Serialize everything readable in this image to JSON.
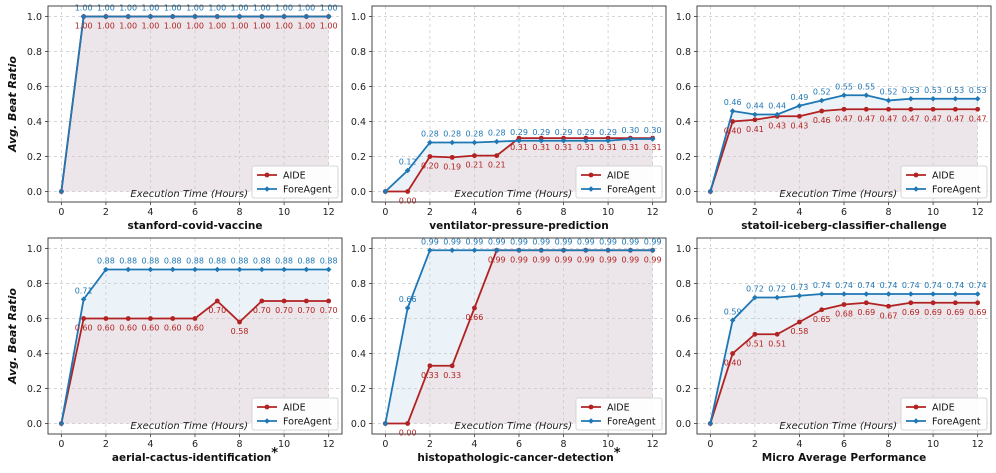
{
  "figure": {
    "ylabel": "Avg. Beat Ratio"
  },
  "colors": {
    "aide": "#b22222",
    "foreagent": "#1f77b4",
    "fill_aide": "#ece6ea",
    "fill_gap": "#e8f0f7"
  },
  "chart_data": [
    {
      "type": "line",
      "title": "stanford-covid-vaccine",
      "xlabel": "Execution Time (Hours)",
      "ylabel": "Avg. Beat Ratio",
      "x": [
        0,
        1,
        2,
        3,
        4,
        5,
        6,
        7,
        8,
        9,
        10,
        11,
        12
      ],
      "xlim": [
        -0.6,
        12.6
      ],
      "ylim": [
        -0.06,
        1.06
      ],
      "xticks": [
        "0",
        "2",
        "4",
        "6",
        "8",
        "10",
        "12"
      ],
      "yticks": [
        "0.0",
        "0.2",
        "0.4",
        "0.6",
        "0.8",
        "1.0"
      ],
      "legend": "lower-right",
      "series": [
        {
          "name": "AIDE",
          "values": [
            0,
            1,
            1,
            1,
            1,
            1,
            1,
            1,
            1,
            1,
            1,
            1,
            1
          ],
          "labels": [
            "",
            "1.00",
            "1.00",
            "1.00",
            "1.00",
            "1.00",
            "1.00",
            "1.00",
            "1.00",
            "1.00",
            "1.00",
            "1.00",
            "1.00"
          ]
        },
        {
          "name": "ForeAgent",
          "values": [
            0,
            1,
            1,
            1,
            1,
            1,
            1,
            1,
            1,
            1,
            1,
            1,
            1
          ],
          "labels": [
            "",
            "1.00",
            "1.00",
            "1.00",
            "1.00",
            "1.00",
            "1.00",
            "1.00",
            "1.00",
            "1.00",
            "1.00",
            "1.00",
            "1.00"
          ]
        }
      ]
    },
    {
      "type": "line",
      "title": "ventilator-pressure-prediction",
      "xlabel": "Execution Time (Hours)",
      "ylabel": "",
      "x": [
        0,
        1,
        2,
        3,
        4,
        5,
        6,
        7,
        8,
        9,
        10,
        11,
        12
      ],
      "xlim": [
        -0.6,
        12.6
      ],
      "ylim": [
        -0.06,
        1.06
      ],
      "xticks": [
        "0",
        "2",
        "4",
        "6",
        "8",
        "10",
        "12"
      ],
      "yticks": [
        "0.0",
        "0.2",
        "0.4",
        "0.6",
        "0.8",
        "1.0"
      ],
      "legend": "lower-right",
      "series": [
        {
          "name": "AIDE",
          "values": [
            0,
            0,
            0.2,
            0.195,
            0.205,
            0.205,
            0.305,
            0.305,
            0.305,
            0.305,
            0.305,
            0.305,
            0.305
          ],
          "labels": [
            "",
            "0.00",
            "0.20",
            "0.19",
            "0.21",
            "0.21",
            "0.31",
            "0.31",
            "0.31",
            "0.31",
            "0.31",
            "0.31",
            "0.31"
          ]
        },
        {
          "name": "ForeAgent",
          "values": [
            0,
            0.12,
            0.28,
            0.28,
            0.28,
            0.285,
            0.29,
            0.29,
            0.29,
            0.29,
            0.29,
            0.3,
            0.3
          ],
          "labels": [
            "",
            "0.12",
            "0.28",
            "0.28",
            "0.28",
            "0.28",
            "0.29",
            "0.29",
            "0.29",
            "0.29",
            "0.29",
            "0.30",
            "0.30"
          ]
        }
      ]
    },
    {
      "type": "line",
      "title": "statoil-iceberg-classifier-challenge",
      "xlabel": "Execution Time (Hours)",
      "ylabel": "",
      "x": [
        0,
        1,
        2,
        3,
        4,
        5,
        6,
        7,
        8,
        9,
        10,
        11,
        12
      ],
      "xlim": [
        -0.6,
        12.6
      ],
      "ylim": [
        -0.06,
        1.06
      ],
      "xticks": [
        "0",
        "2",
        "4",
        "6",
        "8",
        "10",
        "12"
      ],
      "yticks": [
        "0.0",
        "0.2",
        "0.4",
        "0.6",
        "0.8",
        "1.0"
      ],
      "legend": "lower-right",
      "series": [
        {
          "name": "AIDE",
          "values": [
            0,
            0.4,
            0.41,
            0.43,
            0.43,
            0.46,
            0.47,
            0.47,
            0.47,
            0.47,
            0.47,
            0.47,
            0.47
          ],
          "labels": [
            "",
            "0.40",
            "0.41",
            "0.43",
            "0.43",
            "0.46",
            "0.47",
            "0.47",
            "0.47",
            "0.47",
            "0.47",
            "0.47",
            "0.47"
          ]
        },
        {
          "name": "ForeAgent",
          "values": [
            0,
            0.46,
            0.44,
            0.44,
            0.49,
            0.52,
            0.55,
            0.55,
            0.52,
            0.53,
            0.53,
            0.53,
            0.53
          ],
          "labels": [
            "",
            "0.46",
            "0.44",
            "0.44",
            "0.49",
            "0.52",
            "0.55",
            "0.55",
            "0.52",
            "0.53",
            "0.53",
            "0.53",
            "0.53"
          ]
        }
      ]
    },
    {
      "type": "line",
      "title": "aerial-cactus-identification",
      "title_mark": "*",
      "xlabel": "Execution Time (Hours)",
      "ylabel": "Avg. Beat Ratio",
      "x": [
        0,
        1,
        2,
        3,
        4,
        5,
        6,
        7,
        8,
        9,
        10,
        11,
        12
      ],
      "xlim": [
        -0.6,
        12.6
      ],
      "ylim": [
        -0.06,
        1.06
      ],
      "xticks": [
        "0",
        "2",
        "4",
        "6",
        "8",
        "10",
        "12"
      ],
      "yticks": [
        "0.0",
        "0.2",
        "0.4",
        "0.6",
        "0.8",
        "1.0"
      ],
      "legend": "lower-right",
      "series": [
        {
          "name": "AIDE",
          "values": [
            0,
            0.6,
            0.6,
            0.6,
            0.6,
            0.6,
            0.6,
            0.7,
            0.58,
            0.7,
            0.7,
            0.7,
            0.7
          ],
          "labels": [
            "",
            "0.60",
            "0.60",
            "0.60",
            "0.60",
            "0.60",
            "0.60",
            "0.70",
            "0.58",
            "0.70",
            "0.70",
            "0.70",
            "0.70"
          ]
        },
        {
          "name": "ForeAgent",
          "values": [
            0,
            0.71,
            0.88,
            0.88,
            0.88,
            0.88,
            0.88,
            0.88,
            0.88,
            0.88,
            0.88,
            0.88,
            0.88
          ],
          "labels": [
            "",
            "0.71",
            "0.88",
            "0.88",
            "0.88",
            "0.88",
            "0.88",
            "0.88",
            "0.88",
            "0.88",
            "0.88",
            "0.88",
            "0.88"
          ]
        }
      ]
    },
    {
      "type": "line",
      "title": "histopathologic-cancer-detection",
      "title_mark": "*",
      "xlabel": "Execution Time (Hours)",
      "ylabel": "",
      "x": [
        0,
        1,
        2,
        3,
        4,
        5,
        6,
        7,
        8,
        9,
        10,
        11,
        12
      ],
      "xlim": [
        -0.6,
        12.6
      ],
      "ylim": [
        -0.06,
        1.06
      ],
      "xticks": [
        "0",
        "2",
        "4",
        "6",
        "8",
        "10",
        "12"
      ],
      "yticks": [
        "0.0",
        "0.2",
        "0.4",
        "0.6",
        "0.8",
        "1.0"
      ],
      "legend": "lower-right",
      "series": [
        {
          "name": "AIDE",
          "values": [
            0,
            0,
            0.33,
            0.33,
            0.66,
            0.99,
            0.99,
            0.99,
            0.99,
            0.99,
            0.99,
            0.99,
            0.99
          ],
          "labels": [
            "",
            "0.00",
            "0.33",
            "0.33",
            "0.66",
            "0.99",
            "0.99",
            "0.99",
            "0.99",
            "0.99",
            "0.99",
            "0.99",
            "0.99"
          ]
        },
        {
          "name": "ForeAgent",
          "values": [
            0,
            0.66,
            0.99,
            0.99,
            0.99,
            0.99,
            0.99,
            0.99,
            0.99,
            0.99,
            0.99,
            0.99,
            0.99
          ],
          "labels": [
            "",
            "0.66",
            "0.99",
            "0.99",
            "0.99",
            "0.99",
            "0.99",
            "0.99",
            "0.99",
            "0.99",
            "0.99",
            "0.99",
            "0.99"
          ]
        }
      ]
    },
    {
      "type": "line",
      "title": "Micro Average Performance",
      "xlabel": "Execution Time (Hours)",
      "ylabel": "",
      "x": [
        0,
        1,
        2,
        3,
        4,
        5,
        6,
        7,
        8,
        9,
        10,
        11,
        12
      ],
      "xlim": [
        -0.6,
        12.6
      ],
      "ylim": [
        -0.06,
        1.06
      ],
      "xticks": [
        "0",
        "2",
        "4",
        "6",
        "8",
        "10",
        "12"
      ],
      "yticks": [
        "0.0",
        "0.2",
        "0.4",
        "0.6",
        "0.8",
        "1.0"
      ],
      "legend": "lower-right",
      "series": [
        {
          "name": "AIDE",
          "values": [
            0,
            0.4,
            0.51,
            0.51,
            0.58,
            0.65,
            0.68,
            0.69,
            0.67,
            0.69,
            0.69,
            0.69,
            0.69
          ],
          "labels": [
            "",
            "0.40",
            "0.51",
            "0.51",
            "0.58",
            "0.65",
            "0.68",
            "0.69",
            "0.67",
            "0.69",
            "0.69",
            "0.69",
            "0.69"
          ]
        },
        {
          "name": "ForeAgent",
          "values": [
            0,
            0.59,
            0.72,
            0.72,
            0.73,
            0.74,
            0.74,
            0.74,
            0.74,
            0.74,
            0.74,
            0.74,
            0.74
          ],
          "labels": [
            "",
            "0.59",
            "0.72",
            "0.72",
            "0.73",
            "0.74",
            "0.74",
            "0.74",
            "0.74",
            "0.74",
            "0.74",
            "0.74",
            "0.74"
          ]
        }
      ]
    }
  ]
}
